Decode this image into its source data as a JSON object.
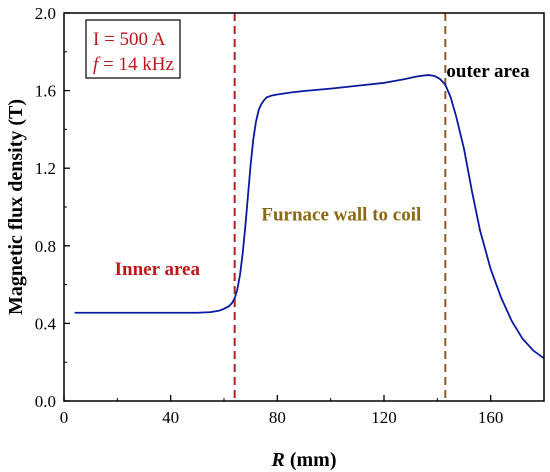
{
  "chart_data": {
    "type": "line",
    "xlabel": {
      "var": "R",
      "unit": "(mm)"
    },
    "ylabel": "Magnetic flux density (T)",
    "xlim": [
      0,
      180
    ],
    "ylim": [
      0.0,
      2.0
    ],
    "x_ticks": [
      0,
      40,
      80,
      120,
      160
    ],
    "y_ticks": [
      0.0,
      0.4,
      0.8,
      1.2,
      1.6,
      2.0
    ],
    "y_tick_labels": [
      "0.0",
      "0.4",
      "0.8",
      "1.2",
      "1.6",
      "2.0"
    ],
    "grid": false,
    "series": [
      {
        "color": "#0a1aa0",
        "x": [
          4,
          20,
          40,
          50,
          55,
          58,
          60,
          62,
          63,
          64,
          65,
          66,
          67,
          68,
          69,
          70,
          71,
          72,
          73,
          74,
          75,
          76,
          78,
          80,
          85,
          90,
          100,
          110,
          120,
          128,
          132,
          135,
          137,
          139,
          141,
          143,
          145,
          147,
          150,
          153,
          156,
          160,
          164,
          168,
          172,
          176,
          180
        ],
        "y": [
          0.455,
          0.455,
          0.455,
          0.455,
          0.458,
          0.465,
          0.475,
          0.49,
          0.505,
          0.53,
          0.575,
          0.65,
          0.76,
          0.9,
          1.06,
          1.22,
          1.35,
          1.44,
          1.5,
          1.53,
          1.55,
          1.565,
          1.575,
          1.58,
          1.59,
          1.598,
          1.61,
          1.625,
          1.64,
          1.66,
          1.672,
          1.678,
          1.68,
          1.675,
          1.66,
          1.63,
          1.565,
          1.47,
          1.3,
          1.08,
          0.88,
          0.68,
          0.53,
          0.41,
          0.32,
          0.26,
          0.22
        ]
      }
    ],
    "vlines": [
      {
        "x": 64,
        "color": "#b22222",
        "style": "dashed"
      },
      {
        "x": 143,
        "color": "#8b5a2b",
        "style": "dashed"
      }
    ],
    "annotations": [
      {
        "text": "Inner area",
        "color": "#c0171b",
        "x": 35,
        "y": 0.65
      },
      {
        "text": "Furnace wall to coil",
        "color": "#8b6914",
        "x": 104,
        "y": 0.93
      },
      {
        "text": "outer area",
        "color": "#000000",
        "x": 159,
        "y": 1.67
      }
    ],
    "legend_box": {
      "line1": "I = 500 A",
      "line2_var": "f",
      "line2_rest": " = 14 kHz",
      "color": "#c0171b"
    }
  }
}
